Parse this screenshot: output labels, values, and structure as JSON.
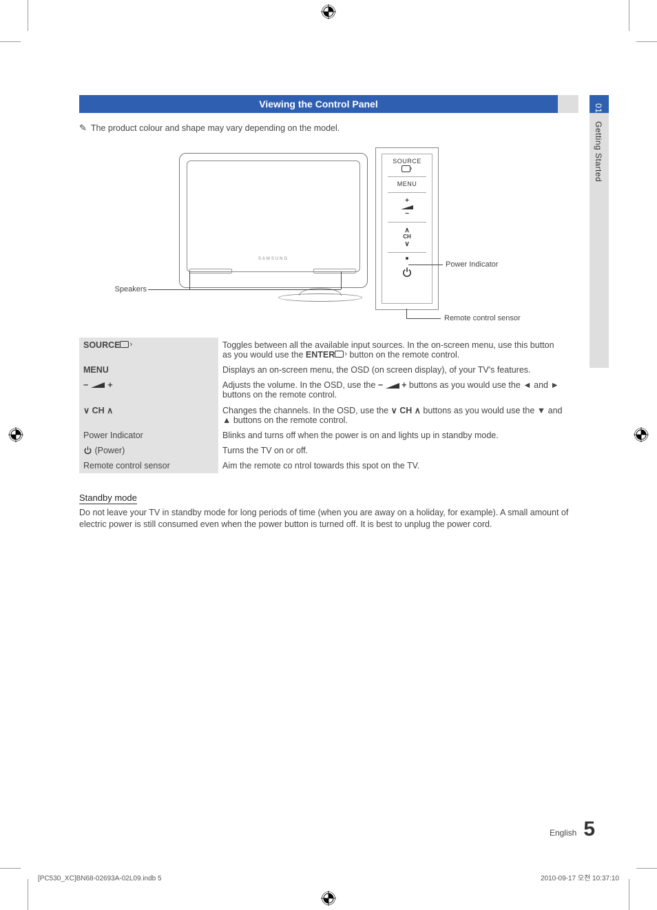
{
  "colors": {
    "title_bar": "#2f5fb0",
    "title_bar_text": "#ffffff",
    "gray_panel": "#dedede",
    "table_label_bg": "#e2e2e2",
    "body_text": "#444444",
    "line": "#444444"
  },
  "side_tab": {
    "chapter_no": "01",
    "chapter_title": "Getting Started"
  },
  "title": "Viewing the Control Panel",
  "note": "The product colour and shape may vary depending on the model.",
  "diagram": {
    "speakers_label": "Speakers",
    "power_indicator_label": "Power Indicator",
    "remote_sensor_label": "Remote control sensor",
    "panel_buttons": {
      "source": "SOURCE",
      "menu": "MENU",
      "vol_plus": "+",
      "vol_minus": "−",
      "ch_up": "∧",
      "ch_label": "CH",
      "ch_down": "∨"
    }
  },
  "table": [
    {
      "label_bold": true,
      "label_text": "SOURCE",
      "label_trailing_icon": "src",
      "desc": "Toggles between all the available input sources. In the on-screen menu, use this button as you would use the {ENTER} button on the remote control."
    },
    {
      "label_bold": true,
      "label_text": "MENU",
      "desc": "Displays an on-screen menu, the OSD (on screen display), of your TV's features."
    },
    {
      "label_bold": true,
      "label_text": "VOLUME",
      "label_is_volume_sym": true,
      "desc": "Adjusts the volume. In the OSD, use the {VOL} buttons as you would use the ◄ and ► buttons on the remote control."
    },
    {
      "label_bold": true,
      "label_text": "CH",
      "label_is_ch_sym": true,
      "desc": "Changes the channels. In the OSD, use the {CH} buttons as you would use the ▼ and ▲ buttons on the remote control."
    },
    {
      "label_bold": false,
      "label_text": "Power Indicator",
      "desc": "Blinks and turns off when the power is on and lights up in standby mode."
    },
    {
      "label_bold": false,
      "label_text": "(Power)",
      "label_leading_icon": "power",
      "desc": "Turns the TV on or off."
    },
    {
      "label_bold": false,
      "label_text": "Remote control sensor",
      "desc": "Aim the remote co ntrol towards this spot on the TV."
    }
  ],
  "standby": {
    "heading": "Standby mode",
    "text": "Do not leave your TV in standby mode for long periods of time (when you are away on a holiday, for example). A small amount of electric power is still consumed even when the power button is turned off. It is best to unplug the power cord."
  },
  "footer": {
    "lang": "English",
    "page_no": "5",
    "left": "[PC530_XC]BN68-02693A-02L09.indb   5",
    "right": "2010-09-17   오전 10:37:10"
  }
}
